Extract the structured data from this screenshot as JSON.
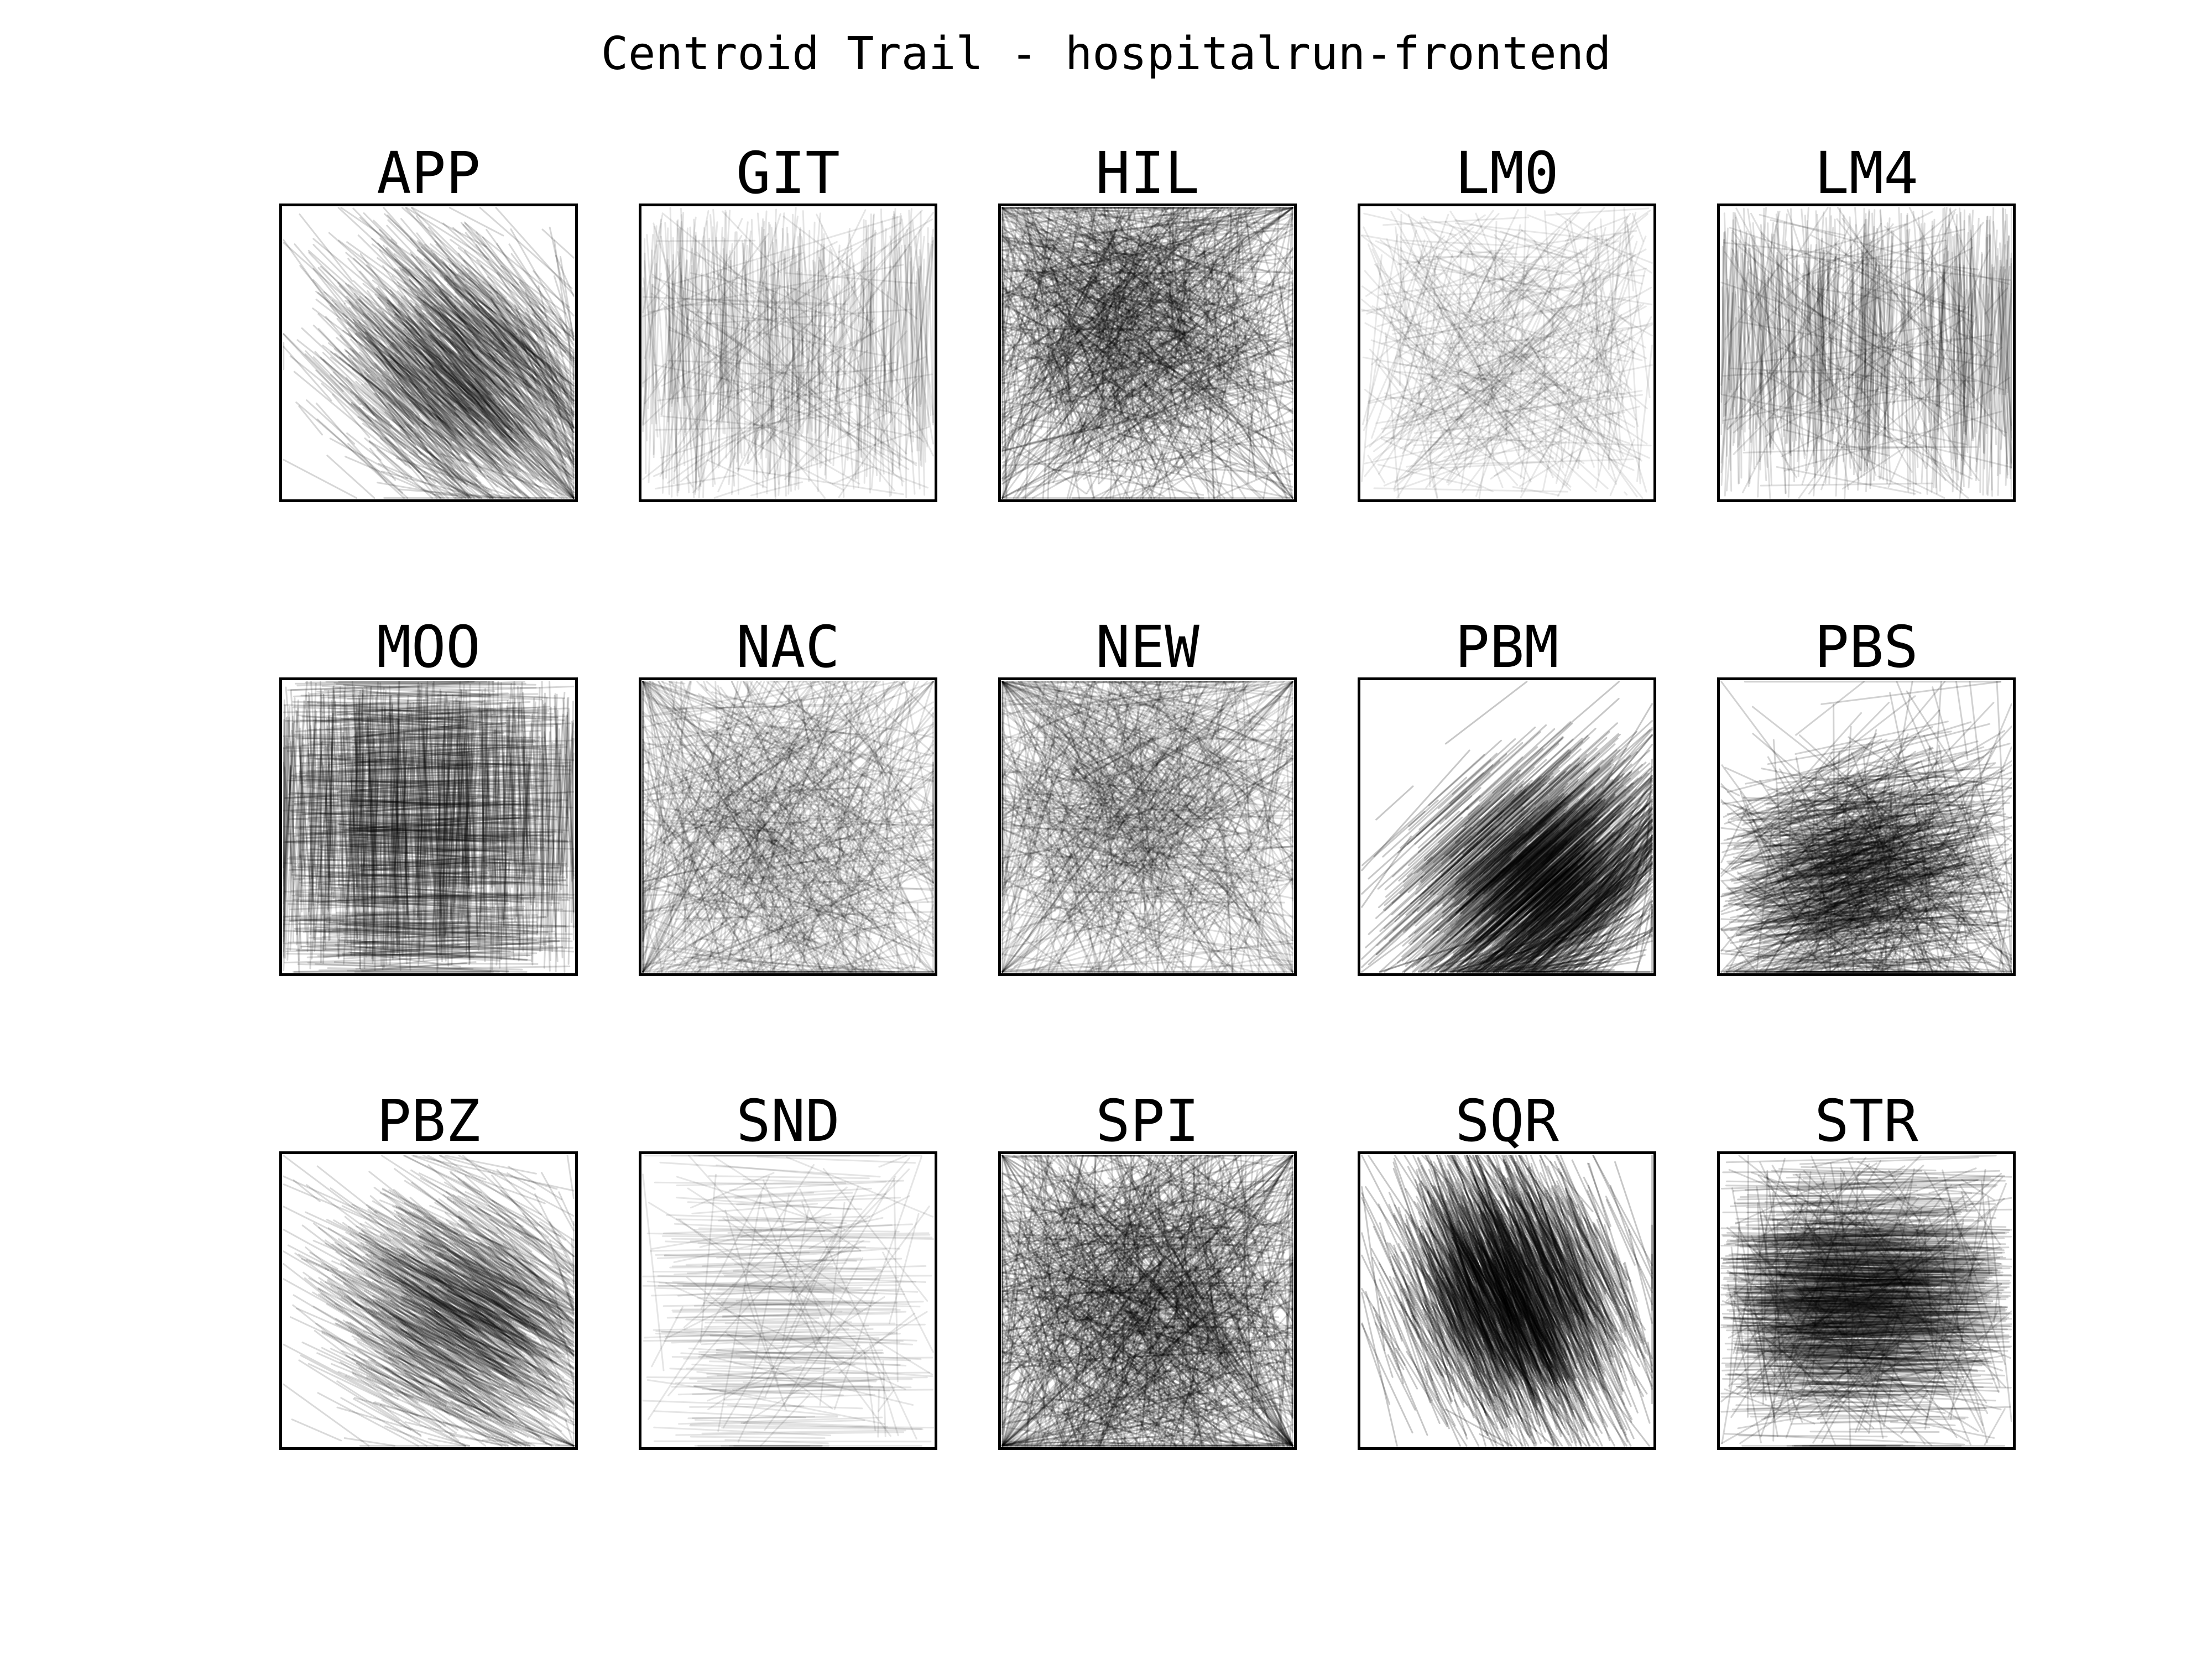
{
  "title": "Centroid Trail - hospitalrun-frontend",
  "chart_data": {
    "type": "line",
    "title": "Centroid Trail - hospitalrun-frontend",
    "xlabel": "",
    "ylabel": "",
    "grid": false,
    "axis_ticks": false,
    "line_color": "#000000",
    "background_color": "#ffffff",
    "layout": {
      "rows": 3,
      "cols": 5
    },
    "panels": [
      {
        "name": "APP"
      },
      {
        "name": "GIT"
      },
      {
        "name": "HIL"
      },
      {
        "name": "LM0"
      },
      {
        "name": "LM4"
      },
      {
        "name": "MOO"
      },
      {
        "name": "NAC"
      },
      {
        "name": "NEW"
      },
      {
        "name": "PBM"
      },
      {
        "name": "PBS"
      },
      {
        "name": "PBZ"
      },
      {
        "name": "SND"
      },
      {
        "name": "SPI"
      },
      {
        "name": "SQR"
      },
      {
        "name": "STR"
      }
    ]
  }
}
